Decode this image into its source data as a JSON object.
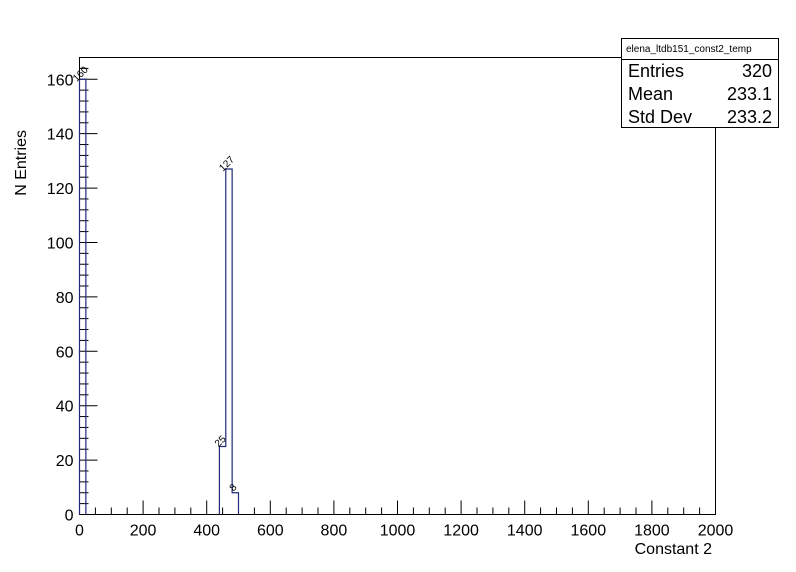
{
  "chart_data": {
    "type": "histogram",
    "xlabel": "Constant 2",
    "ylabel": "N Entries",
    "xlim": [
      0,
      2000
    ],
    "ylim": [
      0,
      168
    ],
    "x_ticks": [
      0,
      200,
      400,
      600,
      800,
      1000,
      1200,
      1400,
      1600,
      1800,
      2000
    ],
    "y_ticks": [
      0,
      20,
      40,
      60,
      80,
      100,
      120,
      140,
      160
    ],
    "bin_width": 20,
    "bins": [
      {
        "x0": 0,
        "x1": 20,
        "value": 160,
        "label": "160"
      },
      {
        "x0": 440,
        "x1": 460,
        "value": 25,
        "label": "25"
      },
      {
        "x0": 460,
        "x1": 480,
        "value": 127,
        "label": "127"
      },
      {
        "x0": 480,
        "x1": 500,
        "value": 8,
        "label": "8"
      }
    ],
    "line_color": "#1f2a7a",
    "grid": false
  },
  "stats_box": {
    "title": "elena_ltdb151_const2_temp",
    "rows": [
      {
        "label": "Entries",
        "value": "320"
      },
      {
        "label": "Mean",
        "value": "233.1"
      },
      {
        "label": "Std Dev",
        "value": "233.2"
      }
    ]
  }
}
